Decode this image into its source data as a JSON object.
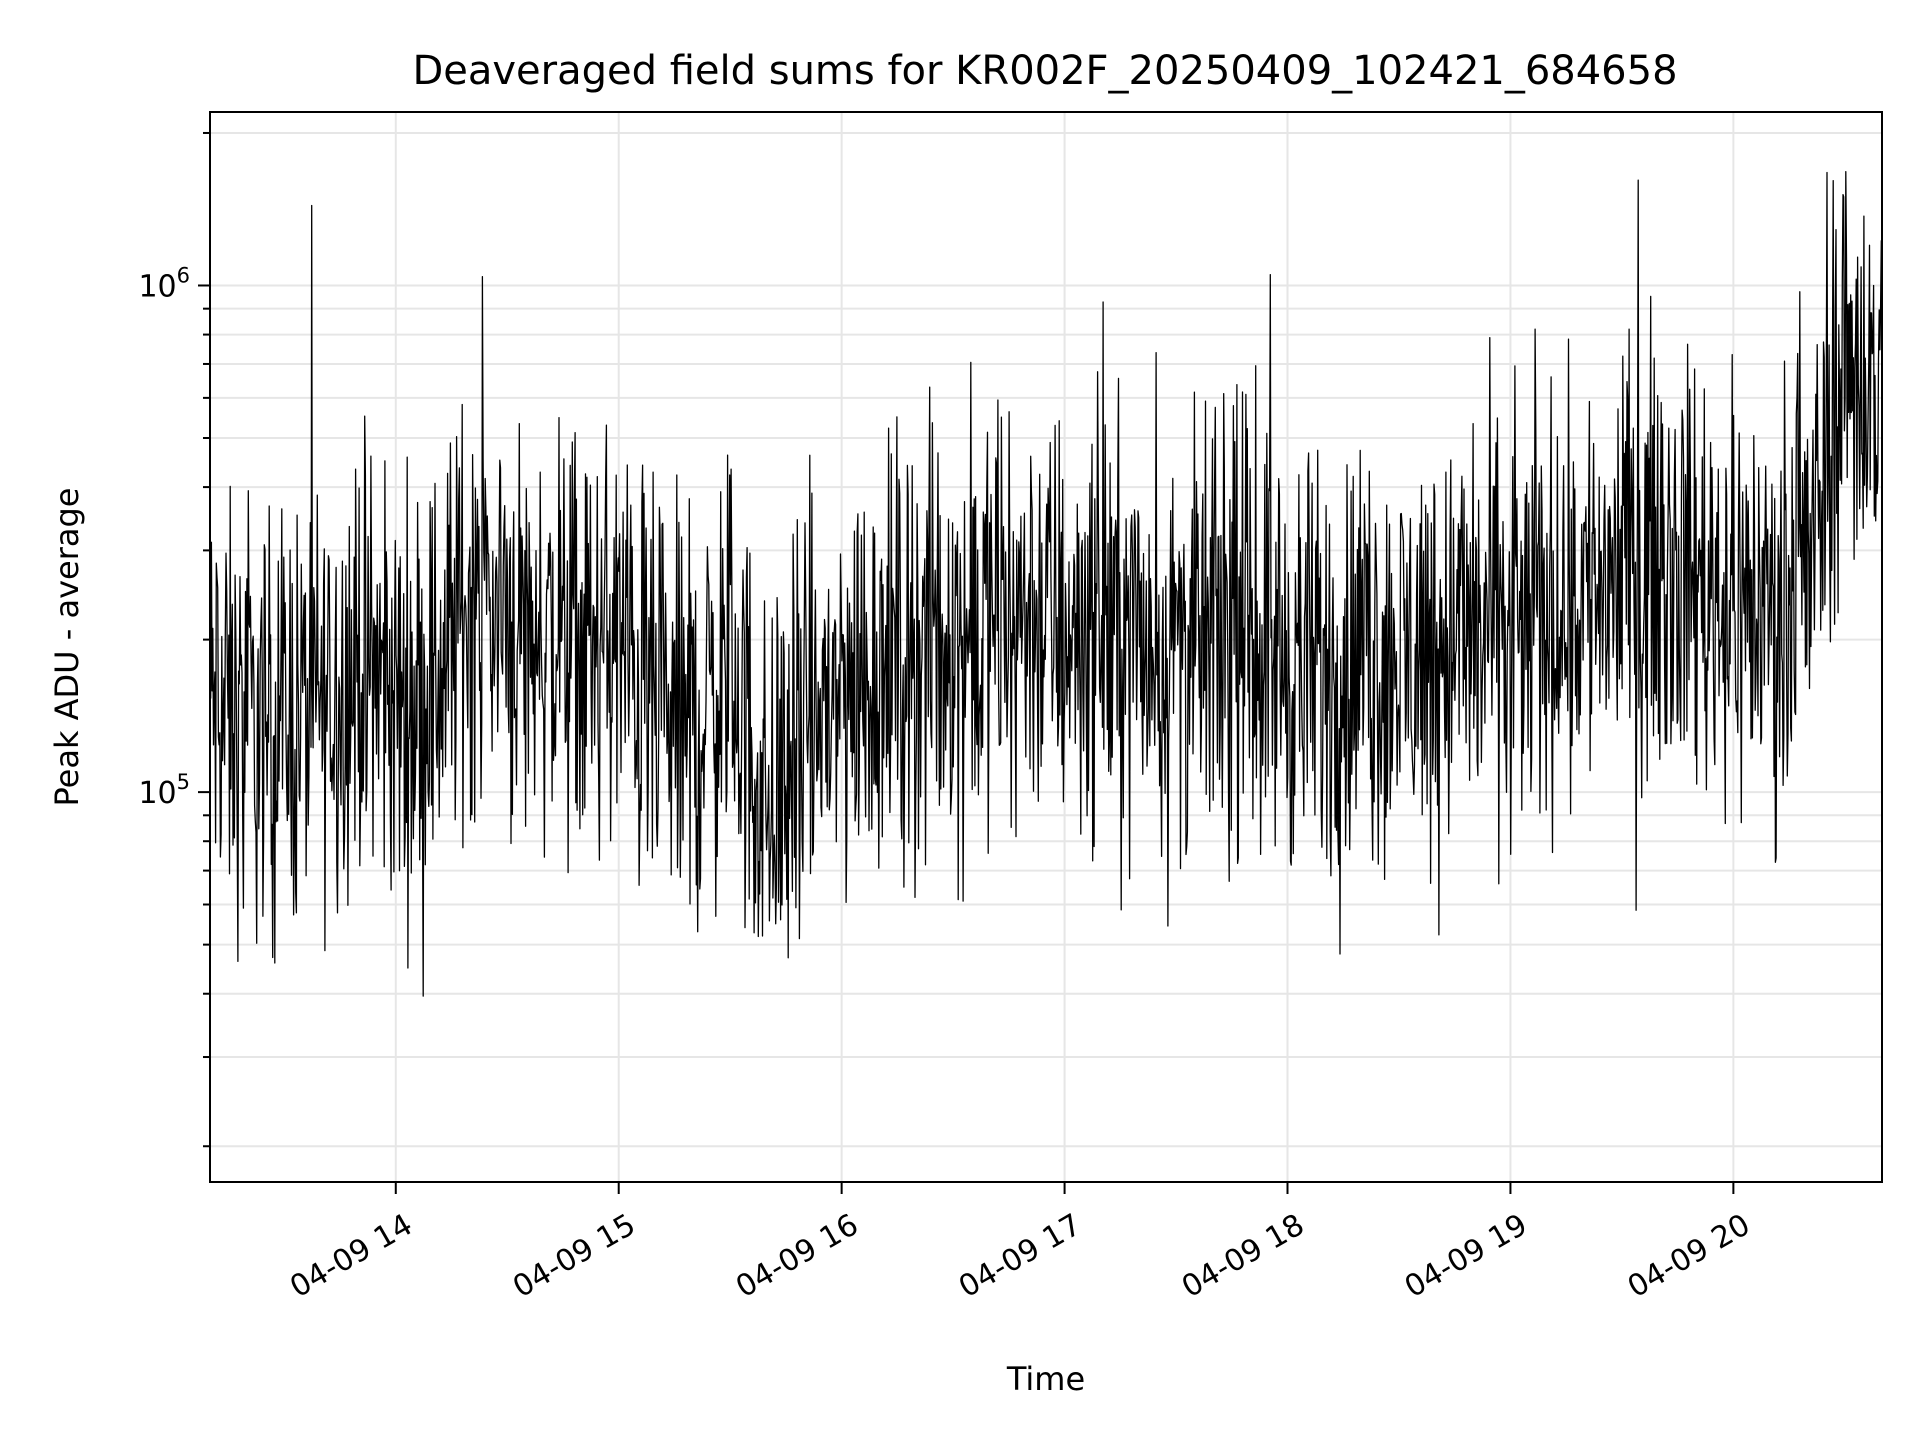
{
  "chart_data": {
    "type": "line",
    "title": "Deaveraged field sums for KR002F_20250409_102421_684658",
    "xlabel": "Time",
    "ylabel": "Peak ADU - average",
    "y_scale": "log",
    "ylim": [
      17000,
      2200000
    ],
    "y_ticks": [
      {
        "value": 100000,
        "base": "10",
        "exp": "5"
      },
      {
        "value": 1000000,
        "base": "10",
        "exp": "6"
      }
    ],
    "xlim": [
      "2025-04-09 13:10",
      "2025-04-09 20:40"
    ],
    "x_ticks": [
      {
        "value": "2025-04-09 14:00",
        "label": "04-09 14"
      },
      {
        "value": "2025-04-09 15:00",
        "label": "04-09 15"
      },
      {
        "value": "2025-04-09 16:00",
        "label": "04-09 16"
      },
      {
        "value": "2025-04-09 17:00",
        "label": "04-09 17"
      },
      {
        "value": "2025-04-09 18:00",
        "label": "04-09 18"
      },
      {
        "value": "2025-04-09 19:00",
        "label": "04-09 19"
      },
      {
        "value": "2025-04-09 20:00",
        "label": "04-09 20"
      }
    ],
    "grid": true,
    "line_color": "#000000",
    "grid_color": "#e6e6e6",
    "series": [
      {
        "x": [
          "2025-04-09 13:10",
          "2025-04-09 13:20",
          "2025-04-09 13:30",
          "2025-04-09 13:40",
          "2025-04-09 13:50",
          "2025-04-09 14:00",
          "2025-04-09 14:10",
          "2025-04-09 14:20",
          "2025-04-09 14:30",
          "2025-04-09 14:40",
          "2025-04-09 14:50",
          "2025-04-09 15:00",
          "2025-04-09 15:10",
          "2025-04-09 15:20",
          "2025-04-09 15:30",
          "2025-04-09 15:40",
          "2025-04-09 15:50",
          "2025-04-09 16:00",
          "2025-04-09 16:10",
          "2025-04-09 16:20",
          "2025-04-09 16:30",
          "2025-04-09 16:40",
          "2025-04-09 16:50",
          "2025-04-09 17:00",
          "2025-04-09 17:10",
          "2025-04-09 17:20",
          "2025-04-09 17:30",
          "2025-04-09 17:40",
          "2025-04-09 17:50",
          "2025-04-09 18:00",
          "2025-04-09 18:10",
          "2025-04-09 18:20",
          "2025-04-09 18:30",
          "2025-04-09 18:40",
          "2025-04-09 18:50",
          "2025-04-09 19:00",
          "2025-04-09 19:10",
          "2025-04-09 19:20",
          "2025-04-09 19:30",
          "2025-04-09 19:40",
          "2025-04-09 19:50",
          "2025-04-09 20:00",
          "2025-04-09 20:10",
          "2025-04-09 20:20",
          "2025-04-09 20:30",
          "2025-04-09 20:40"
        ],
        "y": [
          150000,
          130000,
          140000,
          150000,
          180000,
          150000,
          160000,
          250000,
          220000,
          200000,
          190000,
          200000,
          140000,
          130000,
          180000,
          90000,
          130000,
          160000,
          180000,
          190000,
          200000,
          210000,
          230000,
          210000,
          220000,
          200000,
          190000,
          200000,
          210000,
          180000,
          170000,
          190000,
          180000,
          200000,
          210000,
          200000,
          230000,
          250000,
          280000,
          300000,
          270000,
          240000,
          230000,
          260000,
          750000,
          600000
        ]
      }
    ]
  }
}
